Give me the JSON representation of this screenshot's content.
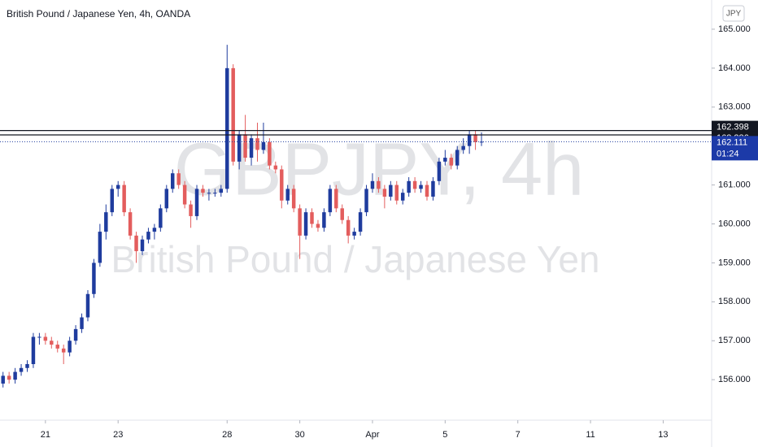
{
  "chart_data": {
    "type": "candlestick",
    "title": "British Pound / Japanese Yen, 4h, OANDA",
    "watermark": "GBPJPY, 4h",
    "watermark_subtitle": "British Pound / Japanese Yen",
    "currency": "JPY",
    "up_color": "#1f3c9e",
    "down_color": "#e35d5d",
    "ohlc": [
      [
        155.9,
        156.2,
        155.8,
        156.1
      ],
      [
        156.1,
        156.2,
        155.9,
        156.0
      ],
      [
        156.0,
        156.3,
        155.9,
        156.2
      ],
      [
        156.2,
        156.4,
        156.1,
        156.3
      ],
      [
        156.3,
        156.5,
        156.2,
        156.4
      ],
      [
        156.4,
        157.2,
        156.3,
        157.1
      ],
      [
        157.1,
        157.2,
        156.9,
        157.1
      ],
      [
        157.1,
        157.2,
        156.9,
        157.0
      ],
      [
        157.0,
        157.1,
        156.8,
        156.9
      ],
      [
        156.9,
        157.0,
        156.7,
        156.8
      ],
      [
        156.8,
        156.9,
        156.4,
        156.7
      ],
      [
        156.7,
        157.1,
        156.6,
        157.0
      ],
      [
        157.0,
        157.4,
        156.9,
        157.3
      ],
      [
        157.3,
        157.7,
        157.2,
        157.6
      ],
      [
        157.6,
        158.3,
        157.5,
        158.2
      ],
      [
        158.2,
        159.1,
        158.1,
        159.0
      ],
      [
        159.0,
        160.0,
        158.9,
        159.8
      ],
      [
        159.8,
        160.5,
        159.6,
        160.3
      ],
      [
        160.3,
        161.0,
        160.2,
        160.9
      ],
      [
        160.9,
        161.1,
        160.7,
        161.0
      ],
      [
        161.0,
        161.1,
        160.2,
        160.3
      ],
      [
        160.3,
        160.4,
        159.6,
        159.7
      ],
      [
        159.7,
        159.8,
        159.0,
        159.3
      ],
      [
        159.3,
        159.7,
        159.2,
        159.6
      ],
      [
        159.6,
        159.9,
        159.5,
        159.8
      ],
      [
        159.8,
        160.0,
        159.6,
        159.9
      ],
      [
        159.9,
        160.5,
        159.8,
        160.4
      ],
      [
        160.4,
        161.0,
        160.3,
        160.9
      ],
      [
        160.9,
        161.4,
        160.8,
        161.3
      ],
      [
        161.3,
        161.4,
        160.9,
        161.0
      ],
      [
        161.0,
        161.1,
        160.4,
        160.5
      ],
      [
        160.5,
        160.6,
        159.9,
        160.2
      ],
      [
        160.2,
        161.0,
        160.1,
        160.9
      ],
      [
        160.9,
        161.0,
        160.7,
        160.8
      ],
      [
        160.8,
        160.9,
        160.6,
        160.8
      ],
      [
        160.8,
        160.9,
        160.7,
        160.8
      ],
      [
        160.8,
        161.0,
        160.7,
        160.9
      ],
      [
        160.9,
        164.6,
        160.8,
        164.0
      ],
      [
        164.0,
        164.1,
        161.5,
        161.6
      ],
      [
        161.6,
        162.4,
        161.4,
        162.3
      ],
      [
        162.3,
        162.8,
        161.6,
        161.7
      ],
      [
        161.7,
        162.3,
        161.5,
        162.2
      ],
      [
        162.2,
        162.6,
        161.6,
        161.9
      ],
      [
        161.9,
        162.6,
        161.8,
        162.1
      ],
      [
        162.1,
        162.2,
        161.4,
        161.5
      ],
      [
        161.5,
        161.6,
        161.3,
        161.4
      ],
      [
        161.4,
        161.5,
        160.4,
        160.6
      ],
      [
        160.6,
        161.0,
        160.5,
        160.9
      ],
      [
        160.9,
        161.0,
        160.3,
        160.4
      ],
      [
        160.4,
        160.5,
        159.1,
        159.7
      ],
      [
        159.7,
        160.4,
        159.6,
        160.3
      ],
      [
        160.3,
        160.4,
        159.9,
        160.0
      ],
      [
        160.0,
        160.1,
        159.8,
        159.9
      ],
      [
        159.9,
        160.4,
        159.8,
        160.3
      ],
      [
        160.3,
        161.0,
        160.2,
        160.9
      ],
      [
        160.9,
        161.0,
        160.3,
        160.4
      ],
      [
        160.4,
        160.5,
        160.0,
        160.1
      ],
      [
        160.1,
        160.2,
        159.5,
        159.7
      ],
      [
        159.7,
        159.9,
        159.6,
        159.8
      ],
      [
        159.8,
        160.4,
        159.7,
        160.3
      ],
      [
        160.3,
        161.0,
        160.2,
        160.9
      ],
      [
        160.9,
        161.3,
        160.8,
        161.1
      ],
      [
        161.1,
        161.2,
        160.8,
        160.9
      ],
      [
        160.9,
        161.0,
        160.4,
        160.7
      ],
      [
        160.7,
        161.1,
        160.6,
        161.0
      ],
      [
        161.0,
        161.1,
        160.5,
        160.6
      ],
      [
        160.6,
        160.9,
        160.5,
        160.8
      ],
      [
        160.8,
        161.2,
        160.7,
        161.1
      ],
      [
        161.1,
        161.2,
        160.8,
        160.9
      ],
      [
        160.9,
        161.1,
        160.8,
        161.0
      ],
      [
        161.0,
        161.1,
        160.6,
        160.7
      ],
      [
        160.7,
        161.2,
        160.6,
        161.1
      ],
      [
        161.1,
        161.7,
        161.0,
        161.6
      ],
      [
        161.6,
        161.9,
        161.5,
        161.7
      ],
      [
        161.7,
        161.8,
        161.4,
        161.5
      ],
      [
        161.5,
        162.0,
        161.4,
        161.9
      ],
      [
        161.9,
        162.2,
        161.8,
        162.0
      ],
      [
        162.0,
        162.4,
        161.8,
        162.3
      ],
      [
        162.3,
        162.4,
        161.9,
        162.1
      ],
      [
        162.1,
        162.35,
        162.0,
        162.111
      ]
    ],
    "xticks": [
      {
        "value": 7,
        "label": "21"
      },
      {
        "value": 19,
        "label": "23"
      },
      {
        "value": 37,
        "label": "28"
      },
      {
        "value": 49,
        "label": "30"
      },
      {
        "value": 61,
        "label": "Apr"
      },
      {
        "value": 73,
        "label": "5"
      },
      {
        "value": 85,
        "label": "7"
      },
      {
        "value": 97,
        "label": "11"
      },
      {
        "value": 109,
        "label": "13"
      }
    ],
    "xlim": [
      -0.5,
      117
    ],
    "ylim": [
      154.96,
      165.75
    ],
    "yticks": [
      {
        "value": 156,
        "label": "156.000"
      },
      {
        "value": 157,
        "label": "157.000"
      },
      {
        "value": 158,
        "label": "158.000"
      },
      {
        "value": 159,
        "label": "159.000"
      },
      {
        "value": 160,
        "label": "160.000"
      },
      {
        "value": 161,
        "label": "161.000"
      },
      {
        "value": 162,
        "label": "162.000"
      },
      {
        "value": 163,
        "label": "163.000"
      },
      {
        "value": 164,
        "label": "164.000"
      },
      {
        "value": 165,
        "label": "165.000"
      }
    ],
    "price_lines": [
      162.398,
      162.286
    ],
    "current_price": 162.111,
    "countdown": "01:24"
  }
}
